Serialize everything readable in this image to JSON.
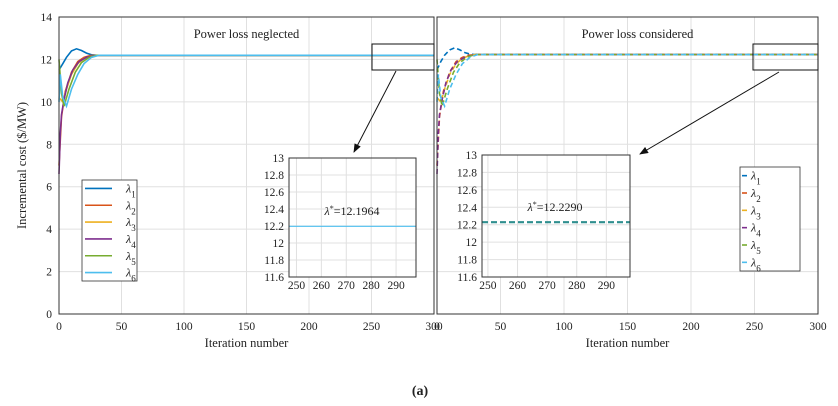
{
  "figure": {
    "caption": "(a)"
  },
  "colors": {
    "l1": "#0072bd",
    "l2": "#d95319",
    "l3": "#edb120",
    "l4": "#7e2f8e",
    "l5": "#77ac30",
    "l6": "#4dbeee",
    "grid": "#e0e0e0",
    "axis": "#333333"
  },
  "chart_data": [
    {
      "type": "line",
      "title": "Power loss neglected",
      "xlabel": "Iteration number",
      "ylabel": "Incremental cost ($/MW)",
      "xlim": [
        0,
        300
      ],
      "ylim": [
        0,
        14
      ],
      "xticks": [
        "0",
        "50",
        "100",
        "150",
        "200",
        "250",
        "300"
      ],
      "yticks": [
        "0",
        "2",
        "4",
        "6",
        "8",
        "10",
        "12",
        "14"
      ],
      "grid": true,
      "line_style": "solid",
      "legend_position": "left",
      "series": [
        {
          "name": "λ1",
          "base": "λ",
          "sub": "1",
          "color_key": "l1",
          "x": [
            0,
            3,
            6,
            10,
            14,
            18,
            22,
            26,
            30,
            300
          ],
          "y": [
            11.5,
            11.8,
            12.1,
            12.4,
            12.5,
            12.42,
            12.3,
            12.22,
            12.1964,
            12.1964
          ]
        },
        {
          "name": "λ2",
          "base": "λ",
          "sub": "2",
          "color_key": "l2",
          "x": [
            0,
            2,
            5,
            10,
            15,
            20,
            25,
            30,
            300
          ],
          "y": [
            7.0,
            9.3,
            10.5,
            11.4,
            11.9,
            12.1,
            12.18,
            12.1964,
            12.1964
          ]
        },
        {
          "name": "λ3",
          "base": "λ",
          "sub": "3",
          "color_key": "l3",
          "x": [
            0,
            3,
            6,
            10,
            15,
            20,
            25,
            30,
            300
          ],
          "y": [
            10.2,
            10.0,
            10.6,
            11.3,
            11.8,
            12.05,
            12.15,
            12.1964,
            12.1964
          ]
        },
        {
          "name": "λ4",
          "base": "λ",
          "sub": "4",
          "color_key": "l4",
          "x": [
            0,
            1,
            2,
            4,
            7,
            11,
            16,
            22,
            28,
            32,
            300
          ],
          "y": [
            6.6,
            8.5,
            9.4,
            10.1,
            10.9,
            11.5,
            11.9,
            12.1,
            12.18,
            12.1964,
            12.1964
          ]
        },
        {
          "name": "λ5",
          "base": "λ",
          "sub": "5",
          "color_key": "l5",
          "x": [
            0,
            2,
            4,
            8,
            13,
            18,
            24,
            30,
            300
          ],
          "y": [
            12.0,
            10.4,
            9.8,
            10.6,
            11.4,
            11.85,
            12.1,
            12.1964,
            12.1964
          ]
        },
        {
          "name": "λ6",
          "base": "λ",
          "sub": "6",
          "color_key": "l6",
          "x": [
            0,
            1,
            3,
            6,
            10,
            15,
            20,
            26,
            32,
            300
          ],
          "y": [
            10.0,
            11.3,
            10.2,
            9.8,
            10.6,
            11.3,
            11.8,
            12.1,
            12.1964,
            12.1964
          ]
        }
      ],
      "inset": {
        "xlim": [
          247,
          298
        ],
        "ylim": [
          11.6,
          13.0
        ],
        "xticks": [
          "250",
          "260",
          "270",
          "280",
          "290"
        ],
        "yticks": [
          "11.6",
          "11.8",
          "12",
          "12.2",
          "12.4",
          "12.6",
          "12.8",
          "13"
        ],
        "value": 12.1964,
        "annotation": {
          "symbol": "λ",
          "superscript": "*",
          "text": "=12.1964"
        }
      }
    },
    {
      "type": "line",
      "title": "Power loss considered",
      "xlabel": "Iteration number",
      "ylabel": "",
      "xlim": [
        0,
        300
      ],
      "ylim": [
        0,
        14
      ],
      "xticks": [
        "0",
        "50",
        "100",
        "150",
        "200",
        "250",
        "300"
      ],
      "yticks": [],
      "grid": true,
      "line_style": "dashed",
      "legend_position": "right",
      "series": [
        {
          "name": "λ1",
          "base": "λ",
          "sub": "1",
          "color_key": "l1",
          "x": [
            0,
            3,
            6,
            10,
            14,
            18,
            22,
            26,
            30,
            300
          ],
          "y": [
            11.5,
            11.9,
            12.2,
            12.45,
            12.55,
            12.45,
            12.32,
            12.25,
            12.229,
            12.229
          ]
        },
        {
          "name": "λ2",
          "base": "λ",
          "sub": "2",
          "color_key": "l2",
          "x": [
            0,
            2,
            5,
            10,
            15,
            20,
            25,
            30,
            300
          ],
          "y": [
            7.0,
            9.3,
            10.5,
            11.4,
            11.9,
            12.1,
            12.2,
            12.229,
            12.229
          ]
        },
        {
          "name": "λ3",
          "base": "λ",
          "sub": "3",
          "color_key": "l3",
          "x": [
            0,
            3,
            6,
            10,
            15,
            20,
            25,
            30,
            300
          ],
          "y": [
            10.2,
            10.0,
            10.6,
            11.3,
            11.8,
            12.05,
            12.17,
            12.229,
            12.229
          ]
        },
        {
          "name": "λ4",
          "base": "λ",
          "sub": "4",
          "color_key": "l4",
          "x": [
            0,
            1,
            2,
            4,
            7,
            11,
            16,
            22,
            28,
            32,
            300
          ],
          "y": [
            6.6,
            8.5,
            9.4,
            10.1,
            10.9,
            11.5,
            11.9,
            12.1,
            12.2,
            12.229,
            12.229
          ]
        },
        {
          "name": "λ5",
          "base": "λ",
          "sub": "5",
          "color_key": "l5",
          "x": [
            0,
            2,
            4,
            8,
            13,
            18,
            24,
            30,
            300
          ],
          "y": [
            12.0,
            10.4,
            9.8,
            10.6,
            11.4,
            11.85,
            12.12,
            12.229,
            12.229
          ]
        },
        {
          "name": "λ6",
          "base": "λ",
          "sub": "6",
          "color_key": "l6",
          "x": [
            0,
            1,
            3,
            6,
            10,
            15,
            20,
            26,
            32,
            300
          ],
          "y": [
            10.0,
            11.3,
            10.2,
            9.8,
            10.6,
            11.3,
            11.8,
            12.1,
            12.229,
            12.229
          ]
        }
      ],
      "inset": {
        "xlim": [
          248,
          298
        ],
        "ylim": [
          11.6,
          13.0
        ],
        "xticks": [
          "250",
          "260",
          "270",
          "280",
          "290"
        ],
        "yticks": [
          "11.6",
          "11.8",
          "12",
          "12.2",
          "12.4",
          "12.6",
          "12.8",
          "13"
        ],
        "value": 12.229,
        "annotation": {
          "symbol": "λ",
          "superscript": "*",
          "text": "=12.2290"
        }
      }
    }
  ]
}
